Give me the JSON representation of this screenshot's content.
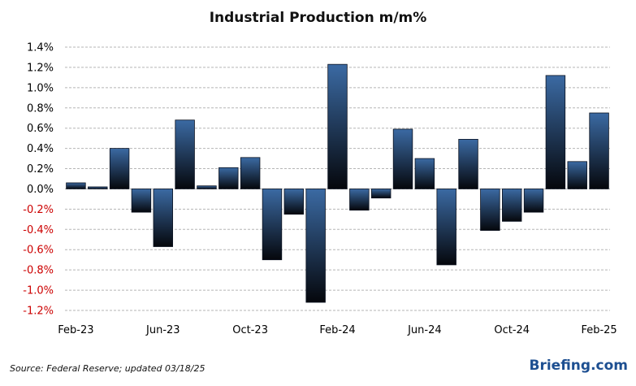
{
  "chart_data": {
    "type": "bar",
    "title": "Industrial Production m/m%",
    "categories": [
      "Feb-23",
      "Mar-23",
      "Apr-23",
      "May-23",
      "Jun-23",
      "Jul-23",
      "Aug-23",
      "Sep-23",
      "Oct-23",
      "Nov-23",
      "Dec-23",
      "Jan-24",
      "Feb-24",
      "Mar-24",
      "Apr-24",
      "May-24",
      "Jun-24",
      "Jul-24",
      "Aug-24",
      "Sep-24",
      "Oct-24",
      "Nov-24",
      "Dec-24",
      "Jan-25",
      "Feb-25"
    ],
    "x_tick_labels": [
      "Feb-23",
      "Jun-23",
      "Oct-23",
      "Feb-24",
      "Jun-24",
      "Oct-24",
      "Feb-25"
    ],
    "x_tick_indices": [
      0,
      4,
      8,
      12,
      16,
      20,
      24
    ],
    "values": [
      0.06,
      0.02,
      0.4,
      -0.23,
      -0.57,
      0.68,
      0.03,
      0.21,
      0.31,
      -0.7,
      -0.25,
      -1.12,
      1.23,
      -0.21,
      -0.09,
      0.59,
      0.3,
      -0.75,
      0.49,
      -0.41,
      -0.32,
      -0.23,
      1.12,
      0.27,
      0.75
    ],
    "y_ticks": [
      "1.4%",
      "1.2%",
      "1.0%",
      "0.8%",
      "0.6%",
      "0.4%",
      "0.2%",
      "0.0%",
      "-0.2%",
      "-0.4%",
      "-0.6%",
      "-0.8%",
      "-1.0%",
      "-1.2%"
    ],
    "ylim": [
      -1.2,
      1.4
    ],
    "grid": true,
    "colors": {
      "bar_top": "#3b6aa3",
      "bar_bottom": "#05070c",
      "negative_tick": "#cc0000",
      "positive_tick": "#000000",
      "grid": "#b5b5b5"
    }
  },
  "footer": {
    "source": "Source: Federal Reserve; updated 03/18/25",
    "brand": "Briefing.com"
  }
}
